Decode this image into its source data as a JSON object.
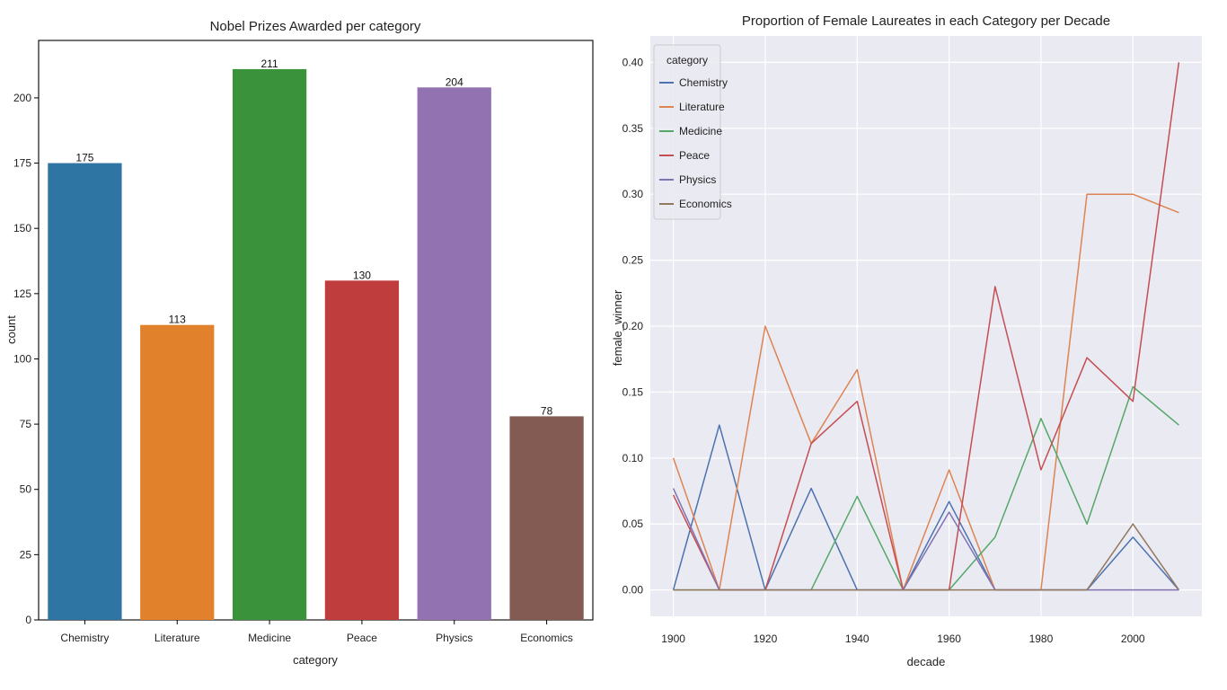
{
  "chart_data": [
    {
      "type": "bar",
      "title": "Nobel Prizes Awarded per category",
      "xlabel": "category",
      "ylabel": "count",
      "ylim": [
        0,
        222
      ],
      "yticks": [
        0,
        25,
        50,
        75,
        100,
        125,
        150,
        175,
        200
      ],
      "categories": [
        "Chemistry",
        "Literature",
        "Medicine",
        "Peace",
        "Physics",
        "Economics"
      ],
      "values": [
        175,
        113,
        211,
        130,
        204,
        78
      ],
      "colors": [
        "#2e75a3",
        "#e1812c",
        "#3a923a",
        "#c03d3e",
        "#9372b2",
        "#845b53"
      ],
      "data_labels": true,
      "grid": false
    },
    {
      "type": "line",
      "title": "Proportion of Female Laureates in each Category per Decade",
      "xlabel": "decade",
      "ylabel": "female_winner",
      "xlim": [
        1895,
        2015
      ],
      "ylim": [
        -0.02,
        0.42
      ],
      "xticks": [
        1900,
        1920,
        1940,
        1960,
        1980,
        2000
      ],
      "yticks": [
        0.0,
        0.05,
        0.1,
        0.15,
        0.2,
        0.25,
        0.3,
        0.35,
        0.4
      ],
      "ytick_labels": [
        "0.00",
        "0.05",
        "0.10",
        "0.15",
        "0.20",
        "0.25",
        "0.30",
        "0.35",
        "0.40"
      ],
      "grid": true,
      "background": "#eaeaf2",
      "legend_title": "category",
      "legend_position": "top-left",
      "x": [
        1900,
        1910,
        1920,
        1930,
        1940,
        1950,
        1960,
        1970,
        1980,
        1990,
        2000,
        2010
      ],
      "series": [
        {
          "name": "Chemistry",
          "color": "#4c72b0",
          "values": [
            0.0,
            0.125,
            0.0,
            0.077,
            0.0,
            0.0,
            0.067,
            0.0,
            0.0,
            0.0,
            0.04,
            0.0
          ]
        },
        {
          "name": "Literature",
          "color": "#dd8452",
          "values": [
            0.1,
            0.0,
            0.2,
            0.111,
            0.167,
            0.0,
            0.091,
            0.0,
            0.0,
            0.3,
            0.3,
            0.286
          ]
        },
        {
          "name": "Medicine",
          "color": "#55a868",
          "values": [
            0.0,
            0.0,
            0.0,
            0.0,
            0.071,
            0.0,
            0.0,
            0.04,
            0.13,
            0.05,
            0.154,
            0.125
          ]
        },
        {
          "name": "Peace",
          "color": "#c44e52",
          "values": [
            0.072,
            0.0,
            0.0,
            0.111,
            0.143,
            0.0,
            0.0,
            0.23,
            0.091,
            0.176,
            0.143,
            0.4
          ]
        },
        {
          "name": "Physics",
          "color": "#8172b3",
          "values": [
            0.077,
            0.0,
            0.0,
            0.0,
            0.0,
            0.0,
            0.059,
            0.0,
            0.0,
            0.0,
            0.0,
            0.0
          ]
        },
        {
          "name": "Economics",
          "color": "#937860",
          "values": [
            0.0,
            0.0,
            0.0,
            0.0,
            0.0,
            0.0,
            0.0,
            0.0,
            0.0,
            0.0,
            0.05,
            0.0
          ]
        }
      ]
    }
  ]
}
